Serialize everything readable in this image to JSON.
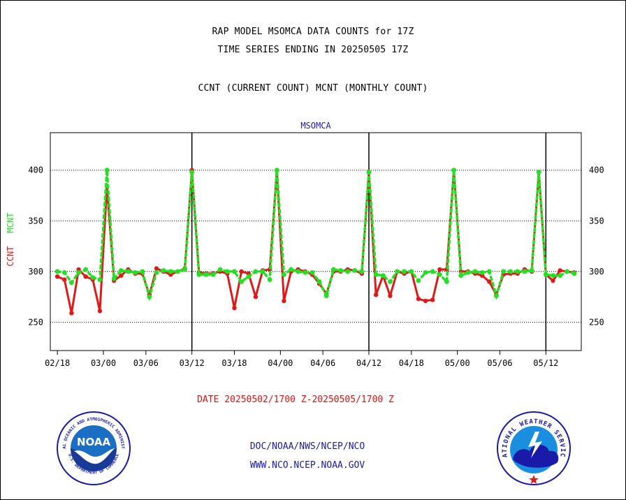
{
  "header": {
    "title": "RAP MODEL MSOMCA DATA COUNTS for 17Z",
    "subtitle": "TIME SERIES ENDING IN 20250505 17Z",
    "description": "CCNT (CURRENT COUNT) MCNT (MONTHLY COUNT)"
  },
  "footer": {
    "date_range": "DATE 20250502/1700 Z-20250505/1700 Z",
    "org_path": "DOC/NOAA/NWS/NCEP/NCO",
    "website": "WWW.NCO.NCEP.NOAA.GOV"
  },
  "logos": {
    "noaa_text": "NOAA",
    "noaa_ring": "NATIONAL OCEANIC AND ATMOSPHERIC ADMINISTRATION",
    "noaa_ring_bottom": "U.S. DEPARTMENT OF COMMERCE",
    "nws_ring": "NATIONAL WEATHER SERVICE"
  },
  "colors": {
    "ccnt": "#e01818",
    "mcnt": "#22e022",
    "label_blue": "#1a1aa8"
  },
  "chart_data": {
    "type": "line",
    "title": "MSOMCA",
    "ylabel_left": "CCNT",
    "ylabel_right": "MCNT",
    "ylim": [
      222,
      437
    ],
    "yticks": [
      250,
      300,
      350,
      400
    ],
    "xlim": [
      0,
      75
    ],
    "xticks": [
      {
        "label": "02/18",
        "at": 1
      },
      {
        "label": "03/00",
        "at": 7.5
      },
      {
        "label": "03/06",
        "at": 13.5
      },
      {
        "label": "03/12",
        "at": 20
      },
      {
        "label": "03/18",
        "at": 26
      },
      {
        "label": "04/00",
        "at": 32.5
      },
      {
        "label": "04/06",
        "at": 38.5
      },
      {
        "label": "04/12",
        "at": 45
      },
      {
        "label": "04/18",
        "at": 51
      },
      {
        "label": "05/00",
        "at": 57.5
      },
      {
        "label": "05/06",
        "at": 63.5
      },
      {
        "label": "05/12",
        "at": 70
      }
    ],
    "day_boundaries": [
      20,
      45,
      70
    ],
    "grid": true,
    "series": [
      {
        "name": "CCNT",
        "values": [
          295,
          292,
          259,
          302,
          295,
          292,
          261,
          384,
          291,
          296,
          302,
          298,
          298,
          277,
          303,
          300,
          297,
          300,
          303,
          400,
          299,
          298,
          298,
          300,
          298,
          264,
          300,
          298,
          275,
          301,
          302,
          400,
          271,
          300,
          302,
          300,
          297,
          288,
          278,
          300,
          300,
          302,
          301,
          298,
          398,
          277,
          296,
          276,
          300,
          298,
          300,
          273,
          271,
          272,
          302,
          302,
          400,
          300,
          300,
          298,
          296,
          290,
          277,
          297,
          298,
          298,
          302,
          300,
          398,
          297,
          291,
          301,
          300,
          299
        ]
      },
      {
        "name": "MCNT",
        "values": [
          300,
          299,
          289,
          299,
          302,
          294,
          292,
          400,
          293,
          301,
          300,
          299,
          300,
          275,
          299,
          301,
          300,
          300,
          302,
          398,
          297,
          297,
          297,
          302,
          300,
          300,
          290,
          295,
          300,
          300,
          292,
          400,
          297,
          302,
          300,
          299,
          299,
          290,
          276,
          302,
          301,
          300,
          301,
          300,
          398,
          297,
          296,
          290,
          300,
          300,
          300,
          291,
          299,
          300,
          297,
          290,
          400,
          296,
          299,
          300,
          299,
          300,
          276,
          300,
          300,
          300,
          300,
          301,
          398,
          297,
          296,
          296,
          300,
          298
        ]
      }
    ]
  }
}
